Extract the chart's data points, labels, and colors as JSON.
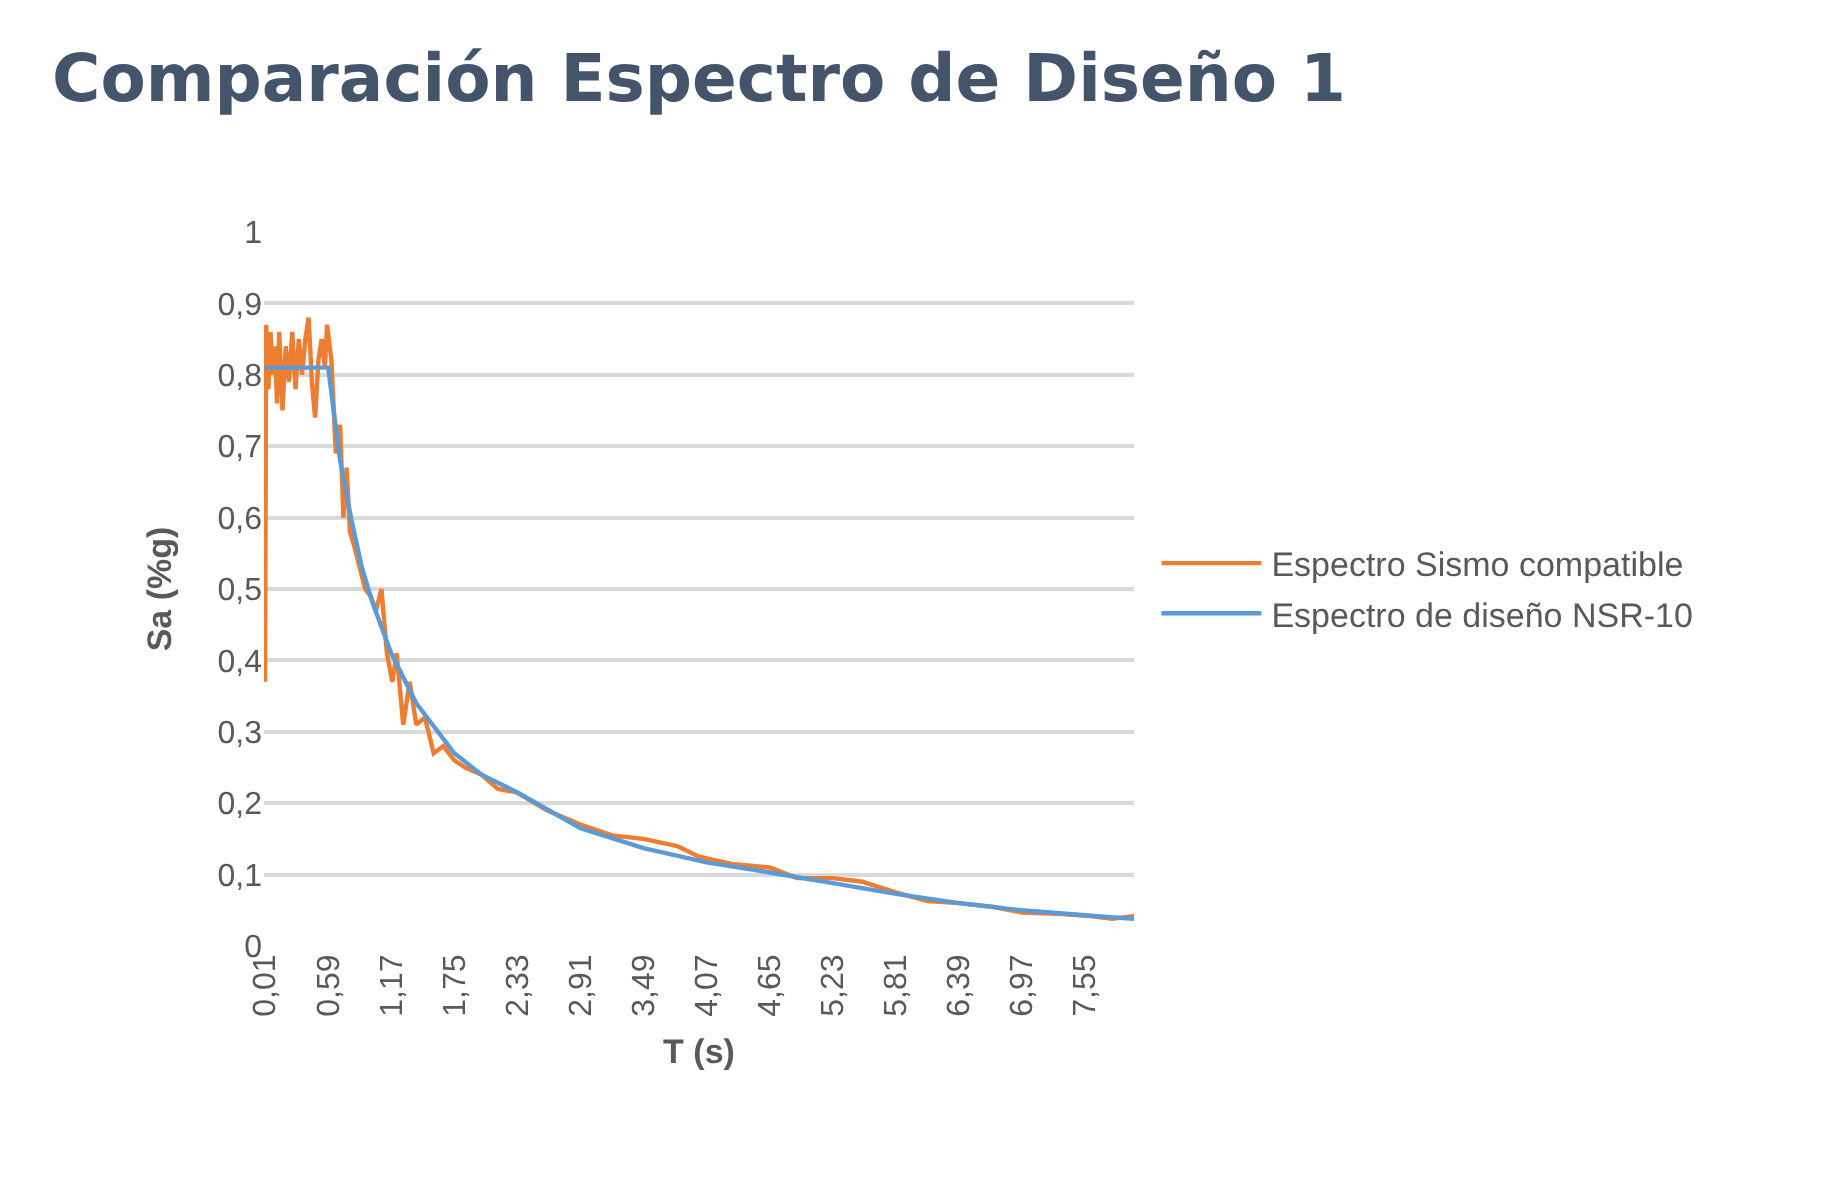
{
  "chart_data": {
    "type": "line",
    "title": "Comparación Espectro de Diseño 1",
    "xlabel": "T (s)",
    "ylabel": "Sa (%g)",
    "xlim": [
      0,
      8
    ],
    "xticks": [
      {
        "value": 0.01,
        "label": "0,01"
      },
      {
        "value": 0.59,
        "label": "0,59"
      },
      {
        "value": 1.17,
        "label": "1,17"
      },
      {
        "value": 1.75,
        "label": "1,75"
      },
      {
        "value": 2.33,
        "label": "2,33"
      },
      {
        "value": 2.91,
        "label": "2,91"
      },
      {
        "value": 3.49,
        "label": "3,49"
      },
      {
        "value": 4.07,
        "label": "4,07"
      },
      {
        "value": 4.65,
        "label": "4,65"
      },
      {
        "value": 5.23,
        "label": "5,23"
      },
      {
        "value": 5.81,
        "label": "5,81"
      },
      {
        "value": 6.39,
        "label": "6,39"
      },
      {
        "value": 6.97,
        "label": "6,97"
      },
      {
        "value": 7.55,
        "label": "7,55"
      }
    ],
    "ylim": [
      0,
      1
    ],
    "yticks": [
      0,
      {
        "value": 0.1,
        "label": "0,1"
      },
      {
        "value": 0.2,
        "label": "0,2"
      },
      {
        "value": 0.3,
        "label": "0,3"
      },
      {
        "value": 0.4,
        "label": "0,4"
      },
      {
        "value": 0.5,
        "label": "0,5"
      },
      {
        "value": 0.6,
        "label": "0,6"
      },
      {
        "value": 0.7,
        "label": "0,7"
      },
      {
        "value": 0.8,
        "label": "0,8"
      },
      {
        "value": 0.9,
        "label": "0,9"
      },
      1
    ],
    "grid": "y",
    "legend": "right",
    "marker": "none",
    "line_style": "solid",
    "series": [
      {
        "name": "Espectro Sismo compatible",
        "color": "#ed7d31",
        "x": [
          0.01,
          0.02,
          0.04,
          0.06,
          0.08,
          0.1,
          0.12,
          0.14,
          0.17,
          0.2,
          0.23,
          0.26,
          0.29,
          0.32,
          0.35,
          0.38,
          0.41,
          0.44,
          0.47,
          0.5,
          0.53,
          0.56,
          0.58,
          0.62,
          0.66,
          0.7,
          0.73,
          0.76,
          0.79,
          0.83,
          0.88,
          0.93,
          0.98,
          1.03,
          1.08,
          1.13,
          1.18,
          1.22,
          1.28,
          1.34,
          1.4,
          1.48,
          1.56,
          1.65,
          1.75,
          1.85,
          2.0,
          2.15,
          2.33,
          2.6,
          2.91,
          3.2,
          3.49,
          3.8,
          4.0,
          4.3,
          4.65,
          4.9,
          5.23,
          5.5,
          5.81,
          6.1,
          6.39,
          6.7,
          6.97,
          7.3,
          7.6,
          7.8,
          8.0
        ],
        "values": [
          0.37,
          0.87,
          0.78,
          0.86,
          0.8,
          0.84,
          0.76,
          0.86,
          0.75,
          0.84,
          0.79,
          0.86,
          0.78,
          0.85,
          0.8,
          0.85,
          0.88,
          0.79,
          0.74,
          0.82,
          0.85,
          0.81,
          0.87,
          0.82,
          0.69,
          0.73,
          0.6,
          0.67,
          0.58,
          0.56,
          0.53,
          0.5,
          0.49,
          0.47,
          0.5,
          0.41,
          0.37,
          0.41,
          0.31,
          0.37,
          0.31,
          0.32,
          0.27,
          0.28,
          0.26,
          0.25,
          0.24,
          0.22,
          0.215,
          0.19,
          0.17,
          0.155,
          0.15,
          0.14,
          0.125,
          0.115,
          0.11,
          0.095,
          0.095,
          0.09,
          0.075,
          0.063,
          0.06,
          0.055,
          0.047,
          0.045,
          0.042,
          0.038,
          0.042
        ]
      },
      {
        "name": "Espectro de diseño NSR-10",
        "color": "#5b9bd5",
        "x": [
          0.01,
          0.59,
          0.7,
          0.8,
          0.9,
          1.0,
          1.17,
          1.4,
          1.75,
          2.0,
          2.33,
          2.91,
          3.49,
          4.07,
          4.65,
          5.23,
          5.81,
          6.39,
          6.97,
          7.55,
          8.0
        ],
        "values": [
          0.81,
          0.81,
          0.68,
          0.6,
          0.53,
          0.48,
          0.41,
          0.34,
          0.27,
          0.24,
          0.215,
          0.165,
          0.137,
          0.117,
          0.103,
          0.088,
          0.073,
          0.06,
          0.05,
          0.043,
          0.038
        ]
      }
    ]
  }
}
